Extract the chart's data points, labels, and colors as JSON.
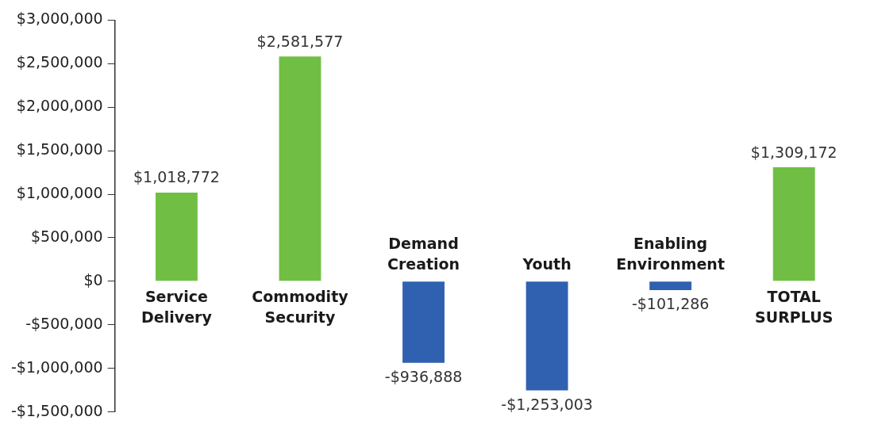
{
  "chart_data": {
    "type": "bar",
    "categories": [
      "Service Delivery",
      "Commodity Security",
      "Demand Creation",
      "Youth",
      "Enabling Environment",
      "TOTAL SURPLUS"
    ],
    "values": [
      1018772,
      2581577,
      -936888,
      -1253003,
      -101286,
      1309172
    ],
    "colors": [
      "#70bf44",
      "#70bf44",
      "#3061b0",
      "#3061b0",
      "#3061b0",
      "#70bf44"
    ],
    "value_labels": [
      "$1,018,772",
      "$2,581,577",
      "-$936,888",
      "-$1,253,003",
      "-$101,286",
      "$1,309,172"
    ],
    "ylim": [
      -1500000,
      3000000
    ],
    "yticks": [
      {
        "value": -1500000,
        "label": "-$1,500,000"
      },
      {
        "value": -1000000,
        "label": "-$1,000,000"
      },
      {
        "value": -500000,
        "label": "-$500,000"
      },
      {
        "value": 0,
        "label": "$0"
      },
      {
        "value": 500000,
        "label": "$500,000"
      },
      {
        "value": 1000000,
        "label": "$1,000,000"
      },
      {
        "value": 1500000,
        "label": "$1,500,000"
      },
      {
        "value": 2000000,
        "label": "$2,000,000"
      },
      {
        "value": 2500000,
        "label": "$2,500,000"
      },
      {
        "value": 3000000,
        "label": "$3,000,000"
      }
    ],
    "grid": false,
    "legend": false
  }
}
